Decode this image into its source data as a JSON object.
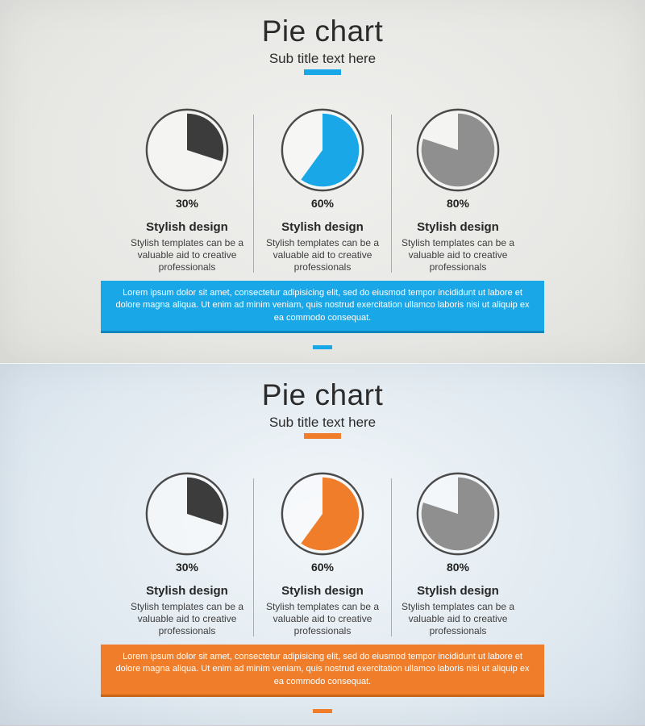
{
  "divider_color": "#9DA1A4",
  "pie_outline_color": "#4A4A4A",
  "pie_inner_fill": "rgba(255,255,255,0.45)",
  "panels": [
    {
      "title": "Pie chart",
      "subtitle": "Sub title text here",
      "accent": "#1AA7E8",
      "callout_bg": "#1AA7E8",
      "callout_border": "#1186BD",
      "callout": "Lorem ipsum dolor sit amet, consectetur adipisicing elit, sed do eiusmod tempor incididunt ut labore et dolore magna aliqua. Ut enim ad minim veniam, quis nostrud exercitation ullamco laboris nisi ut aliquip ex ea commodo consequat.",
      "pies": [
        {
          "percent": 30,
          "label": "30%",
          "color": "#3C3C3C",
          "heading": "Stylish design",
          "body": "Stylish templates can be a valuable aid to creative professionals"
        },
        {
          "percent": 60,
          "label": "60%",
          "color": "#1AA7E8",
          "heading": "Stylish design",
          "body": "Stylish templates can be a valuable aid to creative professionals"
        },
        {
          "percent": 80,
          "label": "80%",
          "color": "#8F8F8F",
          "heading": "Stylish design",
          "body": "Stylish templates can be a valuable aid to creative professionals"
        }
      ]
    },
    {
      "title": "Pie chart",
      "subtitle": "Sub title text here",
      "accent": "#EF7D2A",
      "callout_bg": "#EF7D2A",
      "callout_border": "#C96418",
      "callout": "Lorem ipsum dolor sit amet, consectetur adipisicing elit, sed do eiusmod tempor incididunt ut labore et dolore magna aliqua. Ut enim ad minim veniam, quis nostrud exercitation ullamco laboris nisi ut aliquip ex ea commodo consequat.",
      "pies": [
        {
          "percent": 30,
          "label": "30%",
          "color": "#3C3C3C",
          "heading": "Stylish design",
          "body": "Stylish templates can be a valuable aid to creative professionals"
        },
        {
          "percent": 60,
          "label": "60%",
          "color": "#EF7D2A",
          "heading": "Stylish design",
          "body": "Stylish templates can be a valuable aid to creative professionals"
        },
        {
          "percent": 80,
          "label": "80%",
          "color": "#8F8F8F",
          "heading": "Stylish design",
          "body": "Stylish templates can be a valuable aid to creative professionals"
        }
      ]
    }
  ],
  "chart_data": [
    {
      "type": "pie",
      "title": "Pie chart",
      "subtitle": "Sub title text here",
      "panel": "top",
      "accent_color": "#1AA7E8",
      "pies": [
        {
          "label": "30%",
          "value": 30,
          "remainder": 70,
          "color": "#3C3C3C",
          "caption": "Stylish design"
        },
        {
          "label": "60%",
          "value": 60,
          "remainder": 40,
          "color": "#1AA7E8",
          "caption": "Stylish design"
        },
        {
          "label": "80%",
          "value": 80,
          "remainder": 20,
          "color": "#8F8F8F",
          "caption": "Stylish design"
        }
      ],
      "start_angle": "12 o'clock, clockwise",
      "legend_position": "none"
    },
    {
      "type": "pie",
      "title": "Pie chart",
      "subtitle": "Sub title text here",
      "panel": "bottom",
      "accent_color": "#EF7D2A",
      "pies": [
        {
          "label": "30%",
          "value": 30,
          "remainder": 70,
          "color": "#3C3C3C",
          "caption": "Stylish design"
        },
        {
          "label": "60%",
          "value": 60,
          "remainder": 40,
          "color": "#EF7D2A",
          "caption": "Stylish design"
        },
        {
          "label": "80%",
          "value": 80,
          "remainder": 20,
          "color": "#8F8F8F",
          "caption": "Stylish design"
        }
      ],
      "start_angle": "12 o'clock, clockwise",
      "legend_position": "none"
    }
  ]
}
